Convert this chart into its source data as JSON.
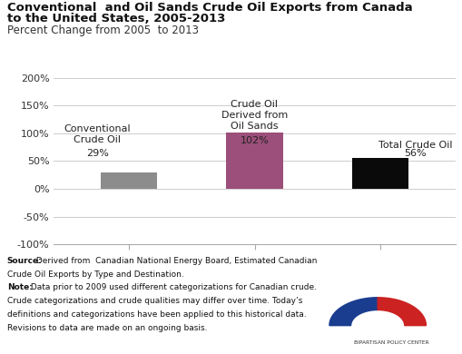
{
  "title_line1": "Conventional  and Oil Sands Crude Oil Exports from Canada",
  "title_line2": "to the United States, 2005-2013",
  "subtitle": "Percent Change from 2005  to 2013",
  "bar_labels": [
    "Conventional\nCrude Oil",
    "Crude Oil\nDerived from\nOil Sands",
    "Total Crude Oil"
  ],
  "bar_pct": [
    "29%",
    "102%",
    "56%"
  ],
  "values": [
    29,
    102,
    56
  ],
  "bar_colors": [
    "#8c8c8c",
    "#9B4F7A",
    "#0a0a0a"
  ],
  "ylim": [
    -100,
    200
  ],
  "yticks": [
    -100,
    -50,
    0,
    50,
    100,
    150,
    200
  ],
  "ytick_labels": [
    "-100%",
    "-50%",
    "0%",
    "50%",
    "100%",
    "150%",
    "200%"
  ],
  "background_color": "#ffffff",
  "title_fontsize": 9.5,
  "subtitle_fontsize": 8.5,
  "bar_label_fontsize": 8,
  "tick_fontsize": 8,
  "footer_fontsize": 6.5
}
